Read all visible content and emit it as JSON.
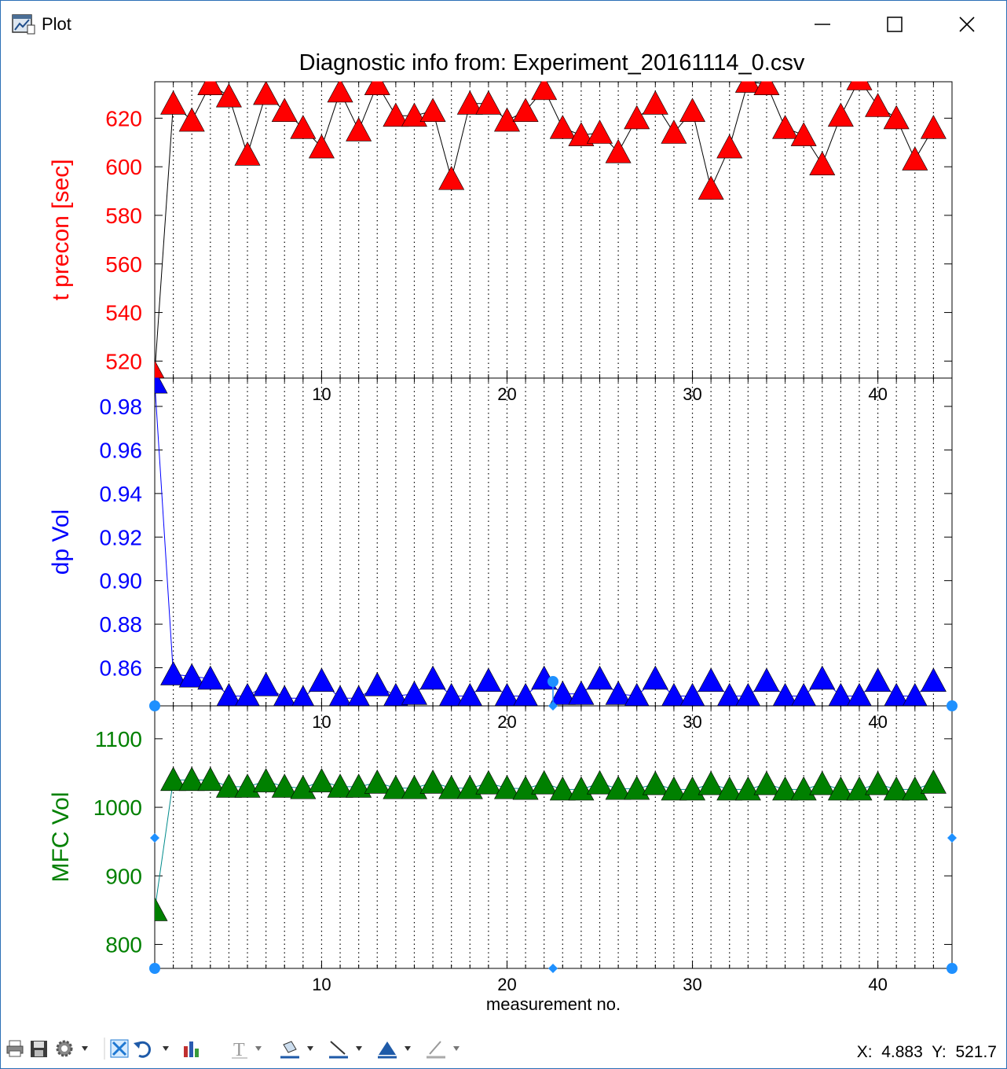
{
  "window": {
    "title": "Plot",
    "controls": [
      "minimize",
      "maximize",
      "close"
    ]
  },
  "toolbar": {
    "icons": [
      "print-icon",
      "save-icon",
      "settings-icon",
      "fit-icon",
      "undo-icon",
      "bar-chart-icon",
      "text-icon",
      "fill-icon",
      "line-icon",
      "marker-icon",
      "pen-icon"
    ]
  },
  "status": {
    "x_label": "X:",
    "x_value": "4.883",
    "y_label": "Y:",
    "y_value": "521.7"
  },
  "chart_data": {
    "type": "line",
    "title": "Diagnostic info from: Experiment_20161114_0.csv",
    "xlabel": "measurement no.",
    "xlim": [
      1,
      44
    ],
    "xticks": [
      10,
      20,
      30,
      40
    ],
    "grid": "vertical dotted at every integer",
    "x": [
      1,
      2,
      3,
      4,
      5,
      6,
      7,
      8,
      9,
      10,
      11,
      12,
      13,
      14,
      15,
      16,
      17,
      18,
      19,
      20,
      21,
      22,
      23,
      24,
      25,
      26,
      27,
      28,
      29,
      30,
      31,
      32,
      33,
      34,
      35,
      36,
      37,
      38,
      39,
      40,
      41,
      42,
      43
    ],
    "panels": [
      {
        "ylabel": "t precon [sec]",
        "color": "#ff0000",
        "ylim": [
          513,
          635
        ],
        "yticks": [
          520,
          540,
          560,
          580,
          600,
          620
        ],
        "marker": "triangle-up",
        "values": [
          515,
          626,
          619,
          634,
          629,
          605,
          630,
          623,
          616,
          608,
          631,
          615,
          634,
          621,
          621,
          623,
          595,
          626,
          626,
          619,
          623,
          632,
          616,
          613,
          614,
          606,
          620,
          626,
          614,
          623,
          591,
          608,
          635,
          634,
          616,
          613,
          601,
          621,
          636,
          625,
          620,
          603,
          616
        ]
      },
      {
        "ylabel": "dp Vol",
        "color": "#0000ff",
        "ylim": [
          0.8425,
          0.993
        ],
        "yticks": [
          0.86,
          0.88,
          0.9,
          0.92,
          0.94,
          0.96,
          0.98
        ],
        "marker": "triangle-up",
        "values": [
          0.991,
          0.857,
          0.856,
          0.855,
          0.847,
          0.847,
          0.852,
          0.846,
          0.846,
          0.854,
          0.846,
          0.846,
          0.852,
          0.847,
          0.848,
          0.855,
          0.847,
          0.847,
          0.854,
          0.847,
          0.847,
          0.855,
          0.848,
          0.848,
          0.855,
          0.848,
          0.847,
          0.855,
          0.847,
          0.847,
          0.854,
          0.847,
          0.847,
          0.854,
          0.847,
          0.847,
          0.855,
          0.847,
          0.847,
          0.854,
          0.847,
          0.847,
          0.854
        ]
      },
      {
        "ylabel": "MFC Vol",
        "color": "#008000",
        "ylim": [
          765,
          1148
        ],
        "yticks": [
          800,
          900,
          1000,
          1100
        ],
        "marker": "triangle-up",
        "values": [
          850,
          1040,
          1040,
          1040,
          1030,
          1030,
          1038,
          1030,
          1028,
          1038,
          1030,
          1030,
          1036,
          1028,
          1028,
          1036,
          1028,
          1028,
          1035,
          1028,
          1027,
          1035,
          1026,
          1026,
          1035,
          1027,
          1027,
          1034,
          1026,
          1026,
          1034,
          1026,
          1026,
          1034,
          1026,
          1026,
          1034,
          1026,
          1026,
          1034,
          1026,
          1026,
          1036
        ]
      }
    ]
  }
}
